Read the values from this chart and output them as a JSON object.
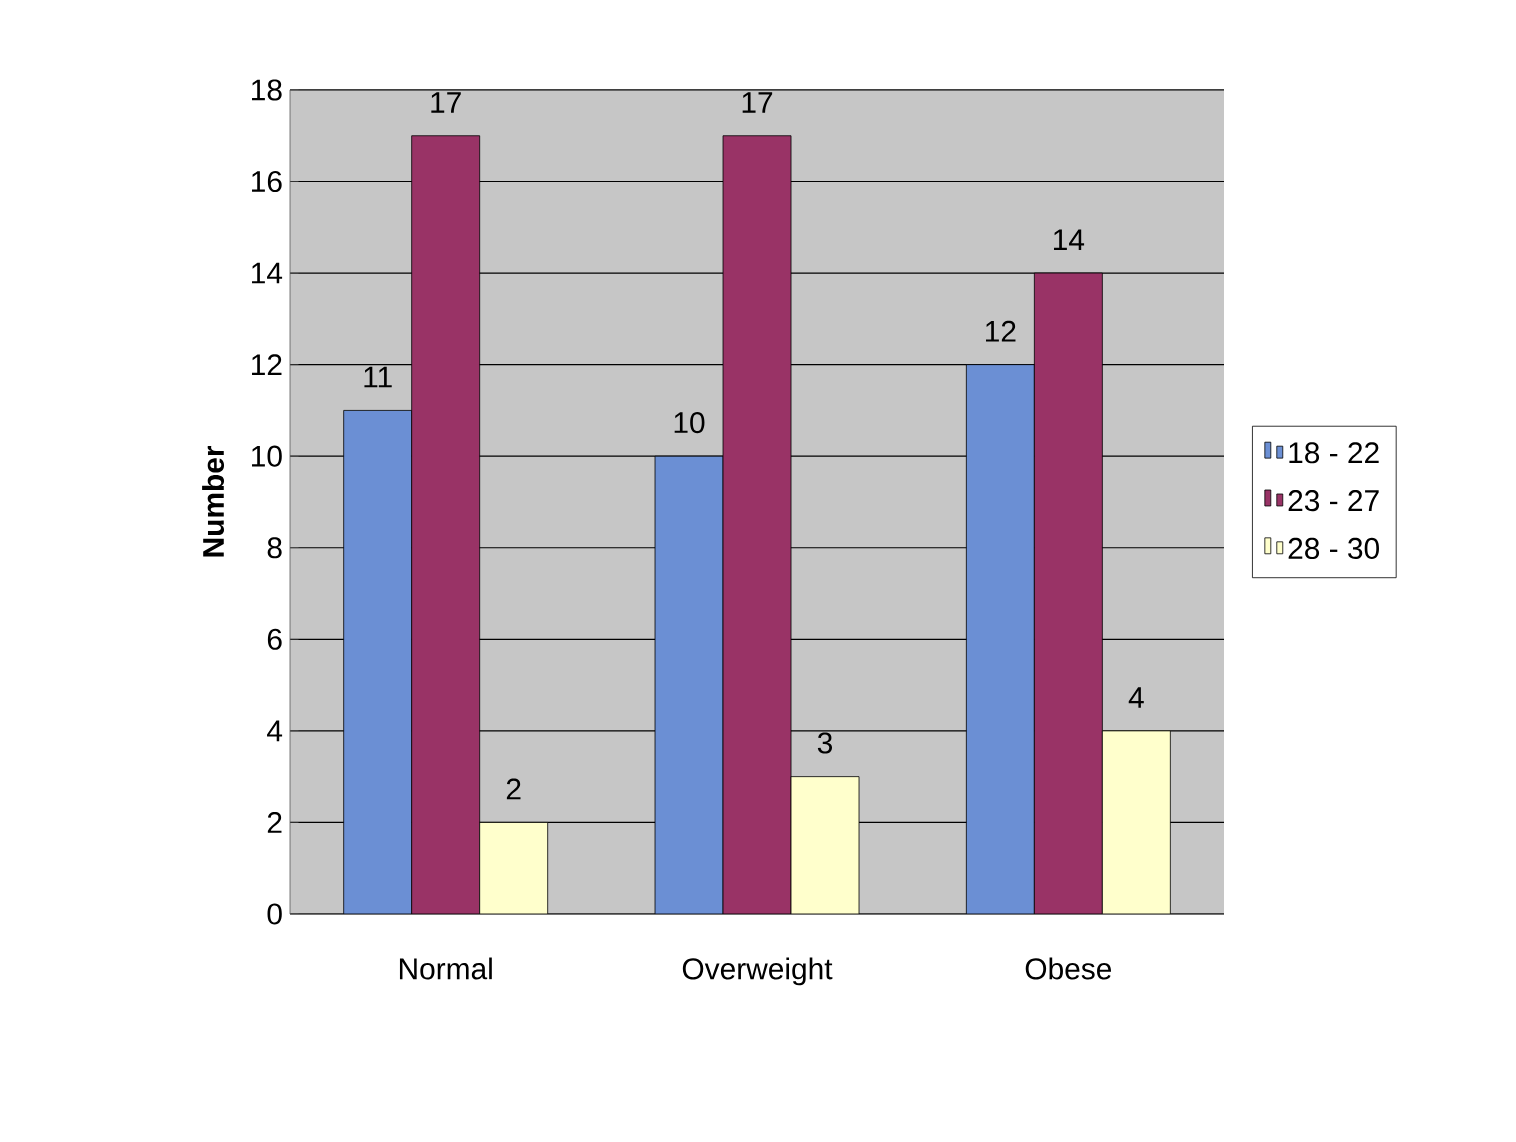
{
  "chart_data": {
    "type": "bar",
    "ylabel": "Number",
    "categories": [
      "Normal",
      "Overweight",
      "Obese"
    ],
    "series": [
      {
        "name": "18 - 22",
        "color": "#6b8fd4",
        "values": [
          11,
          10,
          12
        ]
      },
      {
        "name": "23 - 27",
        "color": "#993366",
        "values": [
          17,
          17,
          14
        ]
      },
      {
        "name": "28 - 30",
        "color": "#ffffcc",
        "values": [
          2,
          3,
          4
        ]
      }
    ],
    "ylim": [
      0,
      18
    ],
    "yticks": [
      0,
      2,
      4,
      6,
      8,
      10,
      12,
      14,
      16,
      18
    ],
    "grid": "y",
    "legend": "right",
    "data_labels": true
  }
}
